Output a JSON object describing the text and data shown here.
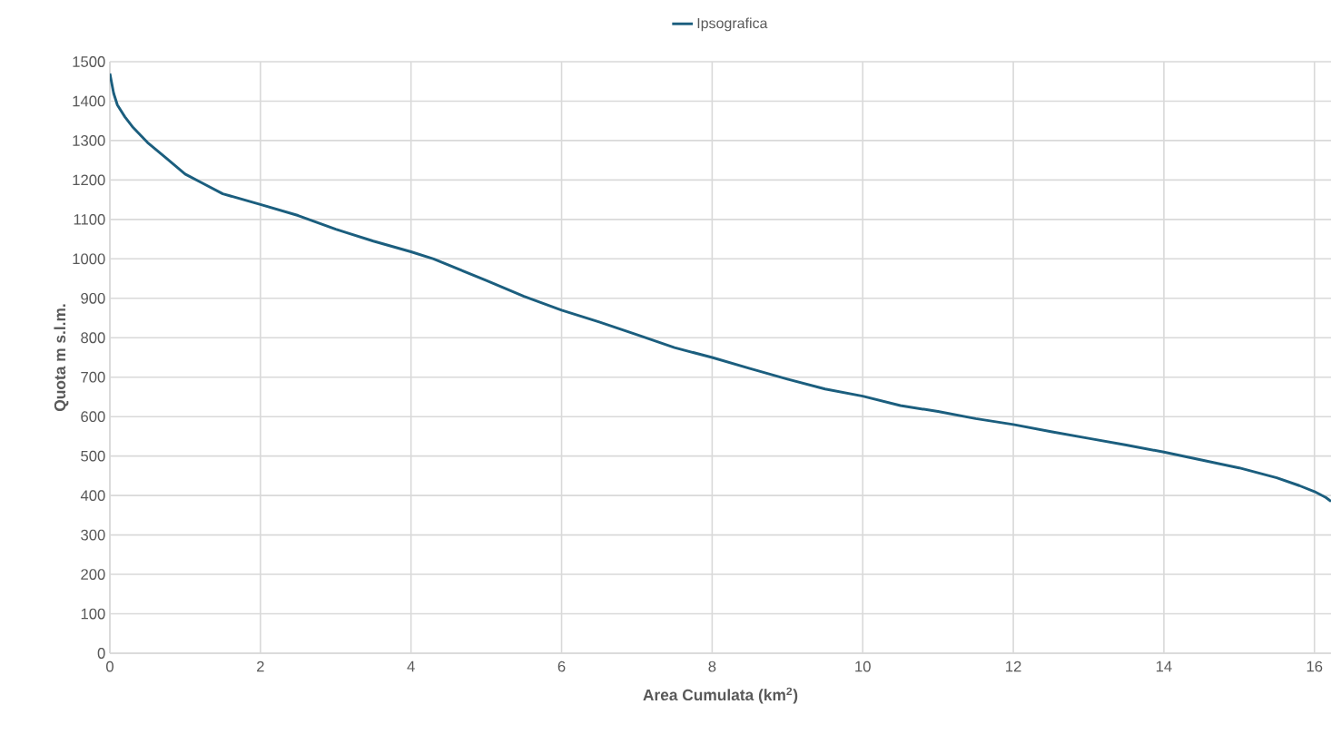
{
  "chart_data": {
    "type": "line",
    "xlabel": "**Area Cumulata (km$^{2}$)**",
    "ylabel": "**Quota m s.l.m.**",
    "xlim": [
      0,
      16.22
    ],
    "ylim": [
      0,
      1500
    ],
    "xticks": [
      0,
      2,
      4,
      6,
      8,
      10,
      12,
      14,
      16
    ],
    "yticks": [
      0,
      100,
      200,
      300,
      400,
      500,
      600,
      700,
      800,
      900,
      1000,
      1100,
      1200,
      1300,
      1400,
      1500
    ],
    "grid": true,
    "legend": "top",
    "marker": "none",
    "line_style": "solid",
    "series": [
      {
        "name": "Ipsografica",
        "color": "#1b5e7e",
        "x": [
          0,
          0.05,
          0.1,
          0.2,
          0.3,
          0.5,
          0.75,
          1.0,
          1.25,
          1.5,
          2,
          2.5,
          3,
          3.5,
          4,
          4.3,
          5,
          5.5,
          6,
          6.5,
          7,
          7.5,
          8,
          8.5,
          9,
          9.5,
          10,
          10.5,
          11,
          11.5,
          12,
          12.5,
          13,
          13.5,
          14,
          14.5,
          15,
          15.5,
          15.8,
          16,
          16.15,
          16.22
        ],
        "values": [
          1470,
          1420,
          1390,
          1360,
          1335,
          1295,
          1255,
          1215,
          1190,
          1165,
          1138,
          1110,
          1075,
          1045,
          1018,
          1000,
          945,
          905,
          870,
          840,
          808,
          775,
          750,
          722,
          695,
          670,
          652,
          628,
          613,
          595,
          580,
          562,
          545,
          528,
          510,
          490,
          470,
          445,
          425,
          410,
          395,
          385
        ]
      }
    ]
  }
}
